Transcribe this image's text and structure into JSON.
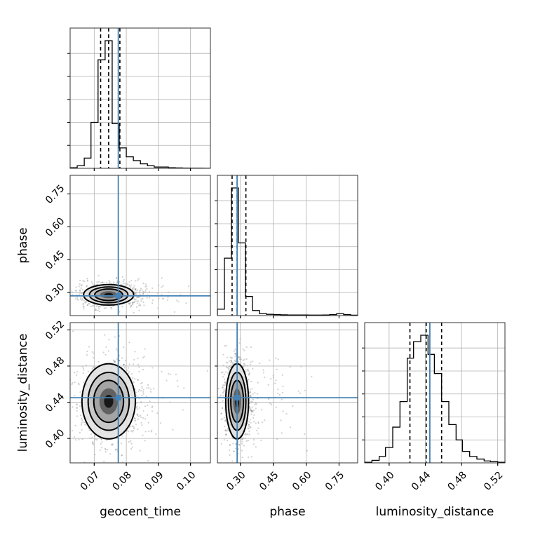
{
  "chart_data": {
    "type": "corner",
    "parameters": [
      "geocent_time",
      "phase",
      "luminosity_distance"
    ],
    "injection": {
      "geocent_time": 0.0775,
      "phase": 0.285,
      "luminosity_distance": 0.445
    },
    "quantiles": {
      "geocent_time": [
        0.072,
        0.0745,
        0.078
      ],
      "phase": [
        0.262,
        0.285,
        0.325
      ],
      "luminosity_distance": [
        0.423,
        0.441,
        0.458
      ]
    },
    "ticks": {
      "geocent_time": [
        0.07,
        0.08,
        0.09,
        0.1
      ],
      "phase": [
        0.3,
        0.45,
        0.6,
        0.75
      ],
      "luminosity_distance": [
        0.4,
        0.44,
        0.48,
        0.52
      ]
    },
    "tick_labels": {
      "geocent_time": [
        "0.07",
        "0.08",
        "0.09",
        "0.10"
      ],
      "phase": [
        "0.30",
        "0.45",
        "0.60",
        "0.75"
      ],
      "luminosity_distance": [
        "0.40",
        "0.44",
        "0.48",
        "0.52"
      ]
    },
    "ranges": {
      "geocent_time": [
        0.0625,
        0.1062
      ],
      "phase": [
        0.195,
        0.835
      ],
      "luminosity_distance": [
        0.373,
        0.528
      ]
    },
    "hist_geocent_time": {
      "bins": [
        0.0625,
        0.0647,
        0.0669,
        0.069,
        0.0712,
        0.0734,
        0.0756,
        0.0778,
        0.08,
        0.0822,
        0.0844,
        0.0866,
        0.0887,
        0.0909,
        0.0931,
        0.0953,
        0.0975,
        0.0997,
        0.1018,
        0.104,
        0.1062
      ],
      "counts": [
        0.005,
        0.02,
        0.08,
        0.36,
        0.85,
        1.0,
        0.35,
        0.16,
        0.09,
        0.06,
        0.035,
        0.02,
        0.01,
        0.01,
        0.005,
        0.003,
        0.002,
        0.001,
        0.001,
        0.0005
      ]
    },
    "hist_phase": {
      "bins": [
        0.195,
        0.227,
        0.259,
        0.291,
        0.323,
        0.355,
        0.387,
        0.419,
        0.451,
        0.483,
        0.515,
        0.547,
        0.579,
        0.611,
        0.643,
        0.675,
        0.707,
        0.739,
        0.771,
        0.803,
        0.835
      ],
      "counts": [
        0.05,
        0.45,
        1.0,
        0.57,
        0.15,
        0.04,
        0.015,
        0.01,
        0.008,
        0.006,
        0.005,
        0.005,
        0.005,
        0.004,
        0.004,
        0.005,
        0.008,
        0.015,
        0.008,
        0.003
      ]
    },
    "hist_luminosity_distance": {
      "bins": [
        0.373,
        0.381,
        0.389,
        0.396,
        0.404,
        0.412,
        0.42,
        0.427,
        0.435,
        0.443,
        0.45,
        0.458,
        0.466,
        0.474,
        0.481,
        0.489,
        0.497,
        0.505,
        0.512,
        0.52,
        0.528
      ],
      "counts": [
        0.005,
        0.02,
        0.05,
        0.12,
        0.28,
        0.48,
        0.82,
        0.95,
        1.0,
        0.85,
        0.7,
        0.48,
        0.3,
        0.18,
        0.09,
        0.05,
        0.03,
        0.015,
        0.01,
        0.005
      ]
    },
    "clouds": {
      "phase_vs_geocent_time": {
        "cx": 0.0745,
        "cy": 0.29,
        "sx": 0.003,
        "sy": 0.018
      },
      "luminosity_distance_vs_geocent_time": {
        "cx": 0.0745,
        "cy": 0.441,
        "sx": 0.0032,
        "sy": 0.016
      },
      "luminosity_distance_vs_phase": {
        "cx": 0.285,
        "cy": 0.441,
        "sx": 0.02,
        "sy": 0.016
      }
    },
    "injection_color": "#4682b4",
    "grid": true
  }
}
